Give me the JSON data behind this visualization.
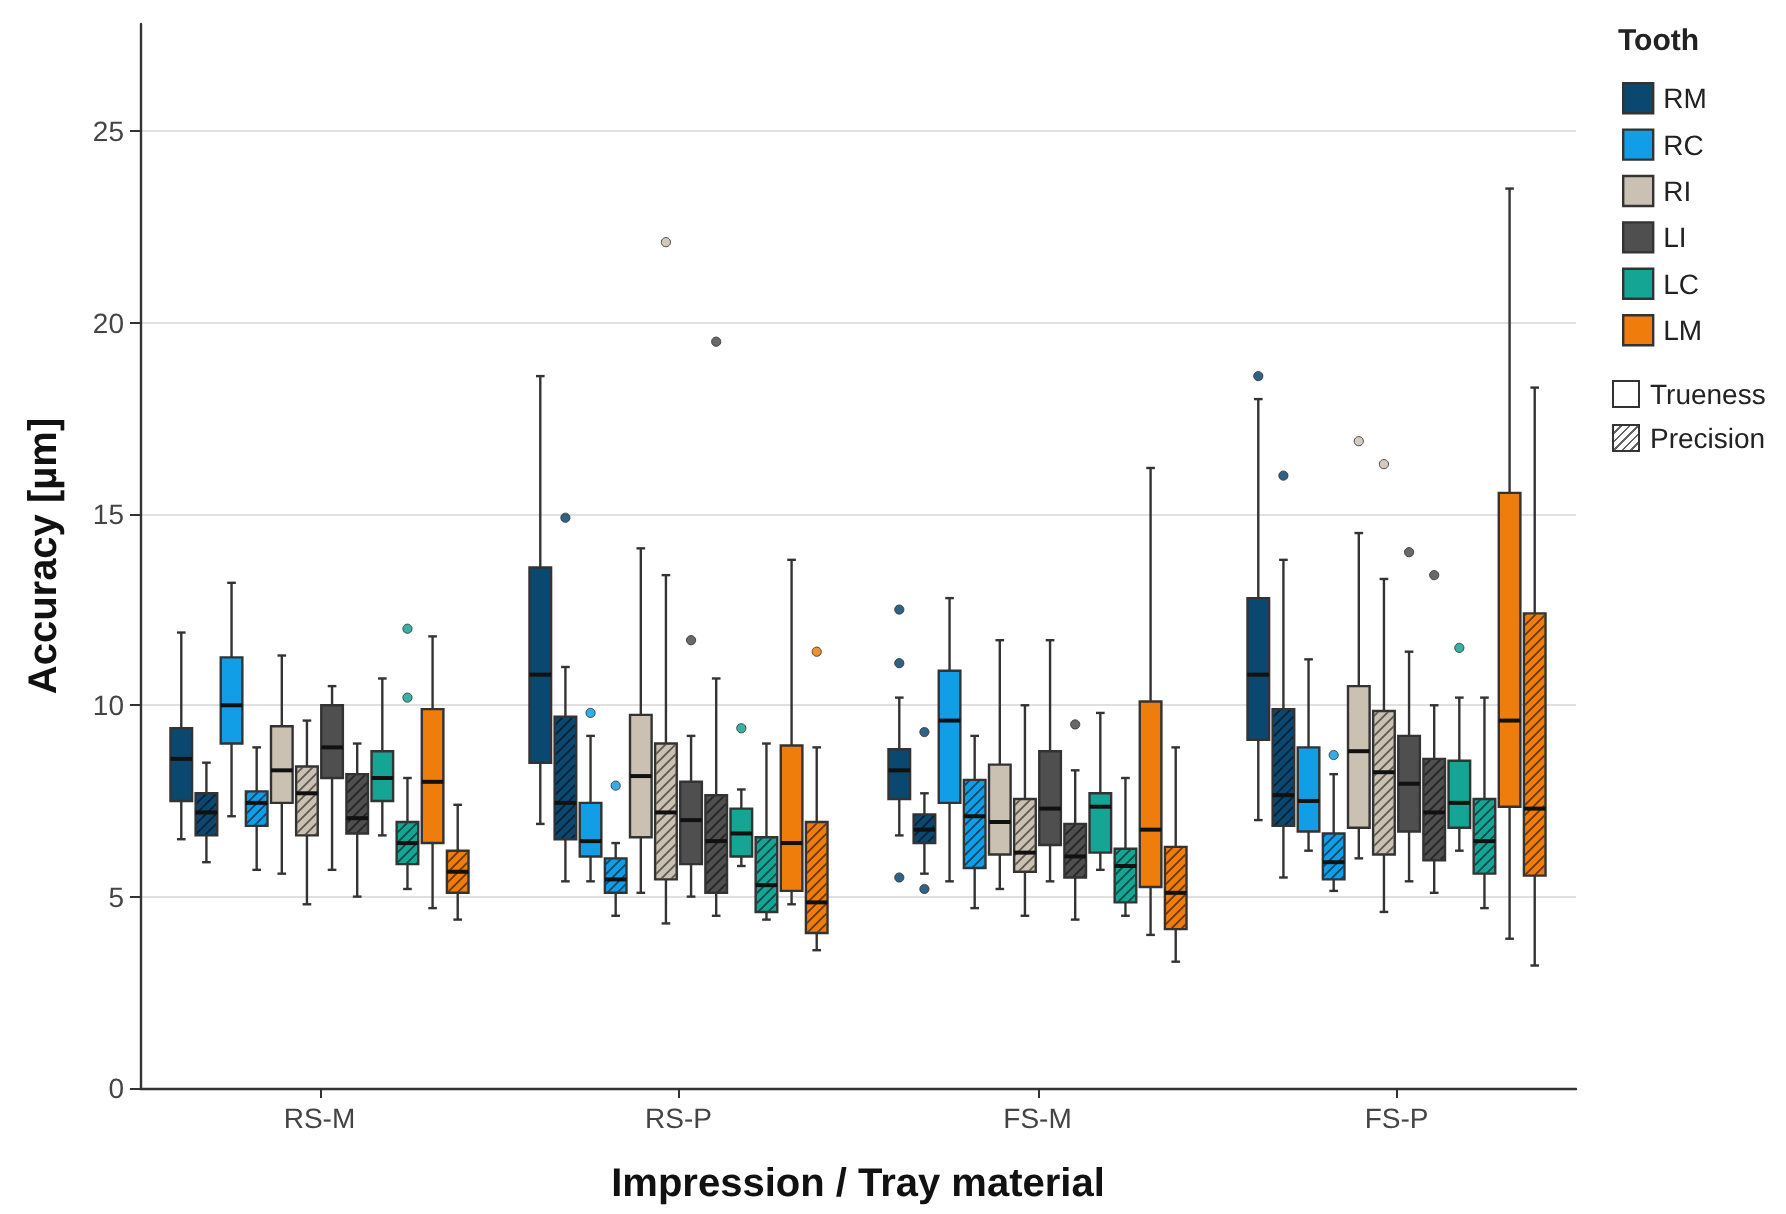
{
  "chart_data": {
    "type": "box",
    "xlabel": "Impression / Tray material",
    "ylabel": "Accuracy [µm]",
    "legend_title": "Tooth",
    "categories": [
      "RS-M",
      "RS-P",
      "FS-M",
      "FS-P"
    ],
    "ylim": [
      0,
      27.8
    ],
    "yticks": [
      0,
      5,
      10,
      15,
      20,
      25
    ],
    "grid": "y",
    "legend": "top right",
    "annotations": [
      "Trueness",
      "Precision"
    ],
    "series": [
      {
        "name": "RM",
        "color": "#0b4870",
        "boxes": [
          {
            "low": 6.5,
            "q1": 7.5,
            "median": 8.6,
            "q3": 9.4,
            "high": 11.9
          },
          {
            "low": 6.9,
            "q1": 8.5,
            "median": 10.8,
            "q3": 13.6,
            "high": 18.6
          },
          {
            "low": 6.6,
            "q1": 7.55,
            "median": 8.3,
            "q3": 8.85,
            "high": 10.2,
            "outliers": [
              12.5,
              11.1,
              5.5
            ]
          },
          {
            "low": 7.0,
            "q1": 9.1,
            "median": 10.8,
            "q3": 12.8,
            "high": 18.0,
            "outliers": [
              18.6
            ]
          }
        ]
      },
      {
        "color": "#0b4870",
        "boxes": [
          {
            "low": 5.9,
            "q1": 6.6,
            "median": 7.2,
            "q3": 7.7,
            "high": 8.5
          },
          {
            "low": 5.4,
            "q1": 6.5,
            "median": 7.45,
            "q3": 9.7,
            "high": 11.0,
            "outliers": [
              14.9
            ]
          },
          {
            "low": 5.6,
            "q1": 6.4,
            "median": 6.75,
            "q3": 7.15,
            "high": 7.7,
            "outliers": [
              9.3,
              5.2
            ]
          },
          {
            "low": 5.5,
            "q1": 6.85,
            "median": 7.65,
            "q3": 9.9,
            "high": 13.8,
            "outliers": [
              16.0
            ]
          }
        ]
      },
      {
        "name": "RC",
        "color": "#129ee6",
        "boxes": [
          {
            "low": 7.1,
            "q1": 9.0,
            "median": 10.0,
            "q3": 11.25,
            "high": 13.2
          },
          {
            "low": 5.4,
            "q1": 6.05,
            "median": 6.45,
            "q3": 7.45,
            "high": 9.2,
            "outliers": [
              9.8
            ]
          },
          {
            "low": 5.4,
            "q1": 7.45,
            "median": 9.6,
            "q3": 10.9,
            "high": 12.8
          },
          {
            "low": 6.2,
            "q1": 6.7,
            "median": 7.5,
            "q3": 8.9,
            "high": 11.2
          }
        ]
      },
      {
        "color": "#129ee6",
        "boxes": [
          {
            "low": 5.7,
            "q1": 6.85,
            "median": 7.45,
            "q3": 7.75,
            "high": 8.9
          },
          {
            "low": 4.5,
            "q1": 5.1,
            "median": 5.45,
            "q3": 6.0,
            "high": 6.4,
            "outliers": [
              7.9
            ]
          },
          {
            "low": 4.7,
            "q1": 5.75,
            "median": 7.1,
            "q3": 8.05,
            "high": 9.2
          },
          {
            "low": 5.15,
            "q1": 5.45,
            "median": 5.9,
            "q3": 6.65,
            "high": 8.2,
            "outliers": [
              8.7
            ]
          }
        ]
      },
      {
        "name": "RI",
        "color": "#cbc1b2",
        "boxes": [
          {
            "low": 5.6,
            "q1": 7.45,
            "median": 8.3,
            "q3": 9.45,
            "high": 11.3
          },
          {
            "low": 5.1,
            "q1": 6.55,
            "median": 8.15,
            "q3": 9.75,
            "high": 14.1
          },
          {
            "low": 5.2,
            "q1": 6.1,
            "median": 6.95,
            "q3": 8.45,
            "high": 11.7
          },
          {
            "low": 6.0,
            "q1": 6.8,
            "median": 8.8,
            "q3": 10.5,
            "high": 14.5,
            "outliers": [
              16.9
            ]
          }
        ]
      },
      {
        "color": "#cbc1b2",
        "boxes": [
          {
            "low": 4.8,
            "q1": 6.6,
            "median": 7.7,
            "q3": 8.4,
            "high": 9.6
          },
          {
            "low": 4.3,
            "q1": 5.45,
            "median": 7.2,
            "q3": 9.0,
            "high": 13.4,
            "outliers": [
              22.1
            ]
          },
          {
            "low": 4.5,
            "q1": 5.65,
            "median": 6.15,
            "q3": 7.55,
            "high": 10.0
          },
          {
            "low": 4.6,
            "q1": 6.1,
            "median": 8.25,
            "q3": 9.85,
            "high": 13.3,
            "outliers": [
              16.3
            ]
          }
        ]
      },
      {
        "name": "LI",
        "color": "#4f4f4f",
        "boxes": [
          {
            "low": 5.7,
            "q1": 8.1,
            "median": 8.9,
            "q3": 10.0,
            "high": 10.5
          },
          {
            "low": 5.0,
            "q1": 5.85,
            "median": 7.0,
            "q3": 8.0,
            "high": 9.2,
            "outliers": [
              11.7
            ]
          },
          {
            "low": 5.4,
            "q1": 6.35,
            "median": 7.3,
            "q3": 8.8,
            "high": 11.7
          },
          {
            "low": 5.4,
            "q1": 6.7,
            "median": 7.95,
            "q3": 9.2,
            "high": 11.4,
            "outliers": [
              14.0
            ]
          }
        ]
      },
      {
        "color": "#4f4f4f",
        "boxes": [
          {
            "low": 5.0,
            "q1": 6.65,
            "median": 7.05,
            "q3": 8.2,
            "high": 9.0
          },
          {
            "low": 4.5,
            "q1": 5.1,
            "median": 6.45,
            "q3": 7.65,
            "high": 10.7,
            "outliers": [
              19.5
            ]
          },
          {
            "low": 4.4,
            "q1": 5.5,
            "median": 6.05,
            "q3": 6.9,
            "high": 8.3,
            "outliers": [
              9.5
            ]
          },
          {
            "low": 5.1,
            "q1": 5.95,
            "median": 7.2,
            "q3": 8.6,
            "high": 10.0,
            "outliers": [
              13.4
            ]
          }
        ]
      },
      {
        "name": "LC",
        "color": "#14a595",
        "boxes": [
          {
            "low": 6.6,
            "q1": 7.5,
            "median": 8.1,
            "q3": 8.8,
            "high": 10.7
          },
          {
            "low": 5.8,
            "q1": 6.05,
            "median": 6.65,
            "q3": 7.3,
            "high": 7.8,
            "outliers": [
              9.4
            ]
          },
          {
            "low": 5.7,
            "q1": 6.15,
            "median": 7.35,
            "q3": 7.7,
            "high": 9.8
          },
          {
            "low": 6.2,
            "q1": 6.8,
            "median": 7.45,
            "q3": 8.55,
            "high": 10.2,
            "outliers": [
              11.5
            ]
          }
        ]
      },
      {
        "color": "#14a595",
        "boxes": [
          {
            "low": 5.2,
            "q1": 5.85,
            "median": 6.4,
            "q3": 6.95,
            "high": 8.1,
            "outliers": [
              12.0,
              10.2
            ]
          },
          {
            "low": 4.4,
            "q1": 4.6,
            "median": 5.3,
            "q3": 6.55,
            "high": 9.0
          },
          {
            "low": 4.5,
            "q1": 4.85,
            "median": 5.8,
            "q3": 6.25,
            "high": 8.1
          },
          {
            "low": 4.7,
            "q1": 5.6,
            "median": 6.45,
            "q3": 7.55,
            "high": 10.2
          }
        ]
      },
      {
        "name": "LM",
        "color": "#ee7d0b",
        "boxes": [
          {
            "low": 4.7,
            "q1": 6.4,
            "median": 8.0,
            "q3": 9.9,
            "high": 11.8
          },
          {
            "low": 4.8,
            "q1": 5.15,
            "median": 6.4,
            "q3": 8.95,
            "high": 13.8
          },
          {
            "low": 4.0,
            "q1": 5.25,
            "median": 6.75,
            "q3": 10.1,
            "high": 16.2
          },
          {
            "low": 3.9,
            "q1": 7.35,
            "median": 9.6,
            "q3": 15.55,
            "high": 23.5
          }
        ]
      },
      {
        "color": "#ee7d0b",
        "boxes": [
          {
            "low": 4.4,
            "q1": 5.1,
            "median": 5.65,
            "q3": 6.2,
            "high": 7.4
          },
          {
            "low": 3.6,
            "q1": 4.05,
            "median": 4.85,
            "q3": 6.95,
            "high": 8.9,
            "outliers": [
              11.4
            ]
          },
          {
            "low": 3.3,
            "q1": 4.15,
            "median": 5.1,
            "q3": 6.3,
            "high": 8.9
          },
          {
            "low": 3.2,
            "q1": 5.55,
            "median": 7.3,
            "q3": 12.4,
            "high": 18.3
          }
        ]
      }
    ]
  }
}
